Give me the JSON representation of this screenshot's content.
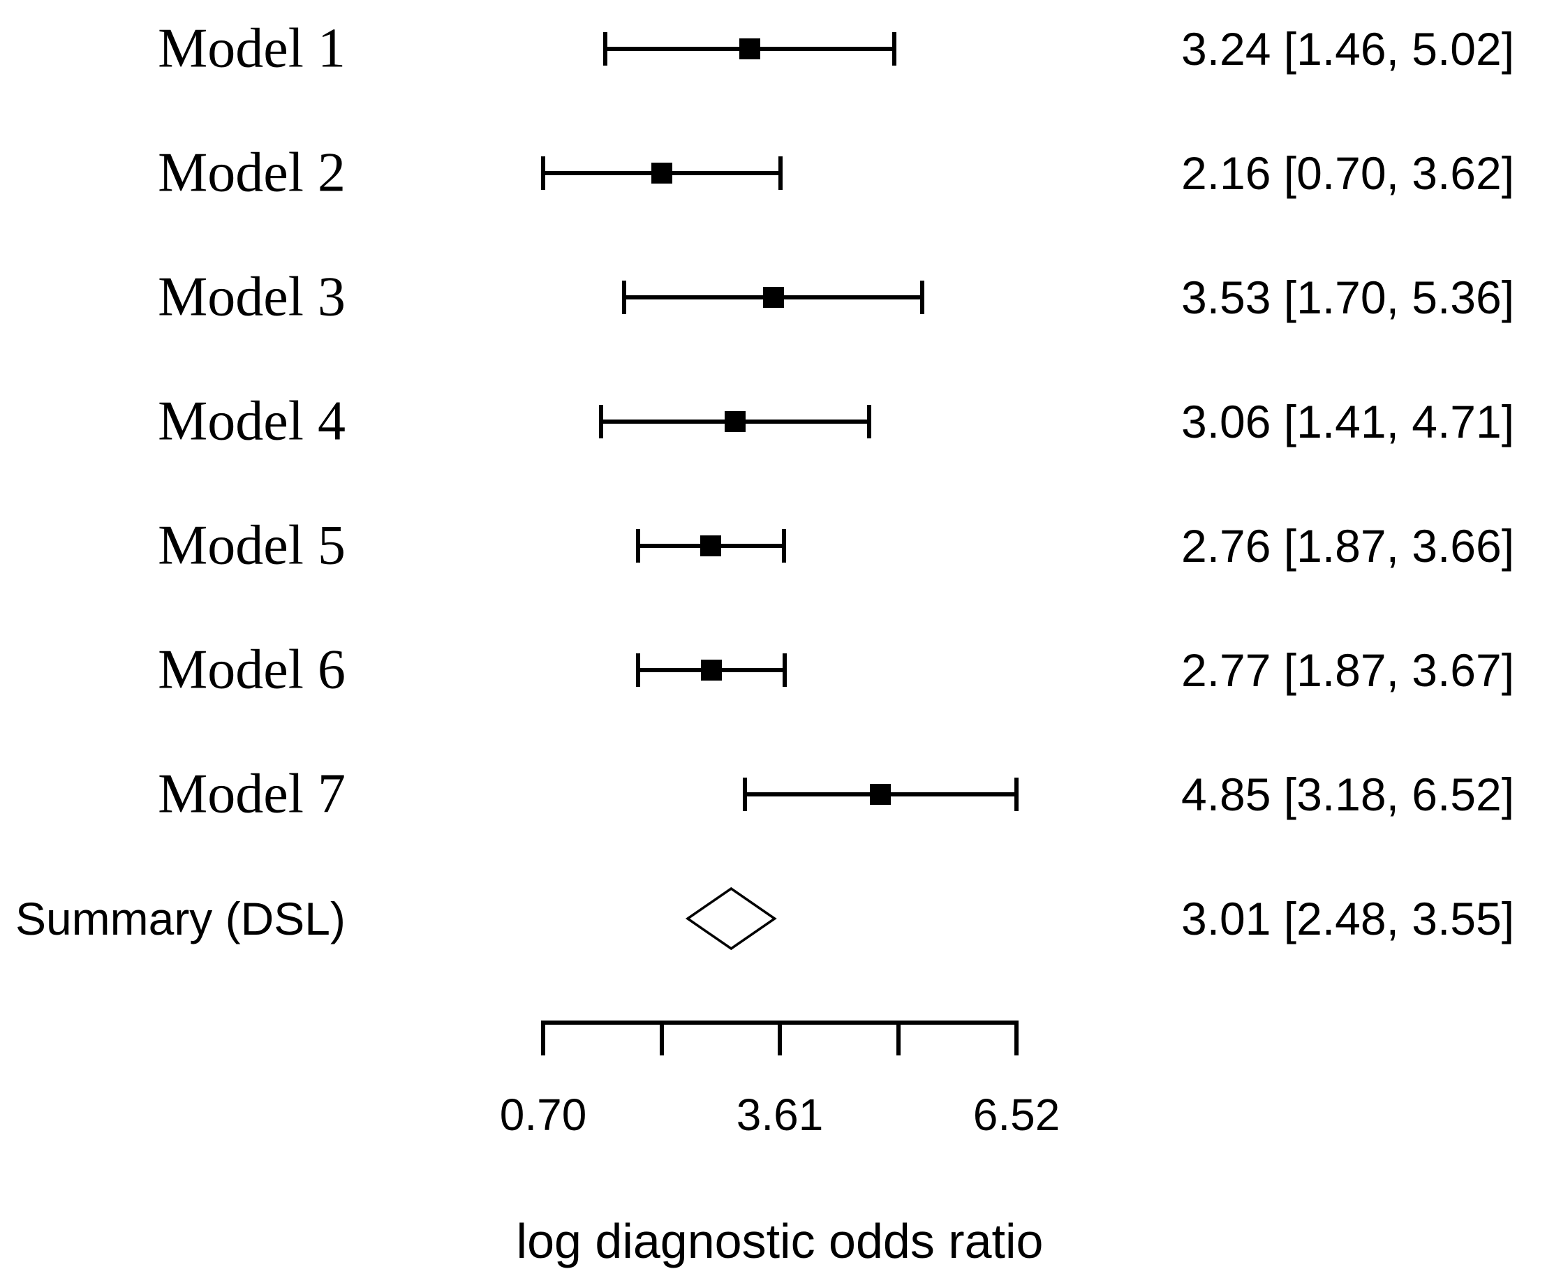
{
  "chart_data": {
    "type": "scatter",
    "subtype": "forest-plot",
    "title": "",
    "xlabel": "log diagnostic odds ratio",
    "ylabel": "",
    "xlim": [
      0.7,
      6.52
    ],
    "x_ticks": [
      0.7,
      2.155,
      3.61,
      5.065,
      6.52
    ],
    "x_tick_labels": [
      "0.70",
      "",
      "3.61",
      "",
      "6.52"
    ],
    "grid": false,
    "legend": "none",
    "rows": [
      {
        "label": "Model 1",
        "estimate": 3.24,
        "ci_lower": 1.46,
        "ci_upper": 5.02,
        "display": "3.24 [1.46, 5.02]",
        "summary": false
      },
      {
        "label": "Model 2",
        "estimate": 2.16,
        "ci_lower": 0.7,
        "ci_upper": 3.62,
        "display": "2.16 [0.70, 3.62]",
        "summary": false
      },
      {
        "label": "Model 3",
        "estimate": 3.53,
        "ci_lower": 1.7,
        "ci_upper": 5.36,
        "display": "3.53 [1.70, 5.36]",
        "summary": false
      },
      {
        "label": "Model 4",
        "estimate": 3.06,
        "ci_lower": 1.41,
        "ci_upper": 4.71,
        "display": "3.06 [1.41, 4.71]",
        "summary": false
      },
      {
        "label": "Model 5",
        "estimate": 2.76,
        "ci_lower": 1.87,
        "ci_upper": 3.66,
        "display": "2.76 [1.87, 3.66]",
        "summary": false
      },
      {
        "label": "Model 6",
        "estimate": 2.77,
        "ci_lower": 1.87,
        "ci_upper": 3.67,
        "display": "2.77 [1.87, 3.67]",
        "summary": false
      },
      {
        "label": "Model 7",
        "estimate": 4.85,
        "ci_lower": 3.18,
        "ci_upper": 6.52,
        "display": "4.85 [3.18, 6.52]",
        "summary": false
      },
      {
        "label": "Summary (DSL)",
        "estimate": 3.01,
        "ci_lower": 2.48,
        "ci_upper": 3.55,
        "display": "3.01 [2.48, 3.55]",
        "summary": true
      }
    ],
    "colors": {
      "marker": "#000000",
      "line": "#000000",
      "text": "#000000",
      "background": "#ffffff"
    }
  }
}
